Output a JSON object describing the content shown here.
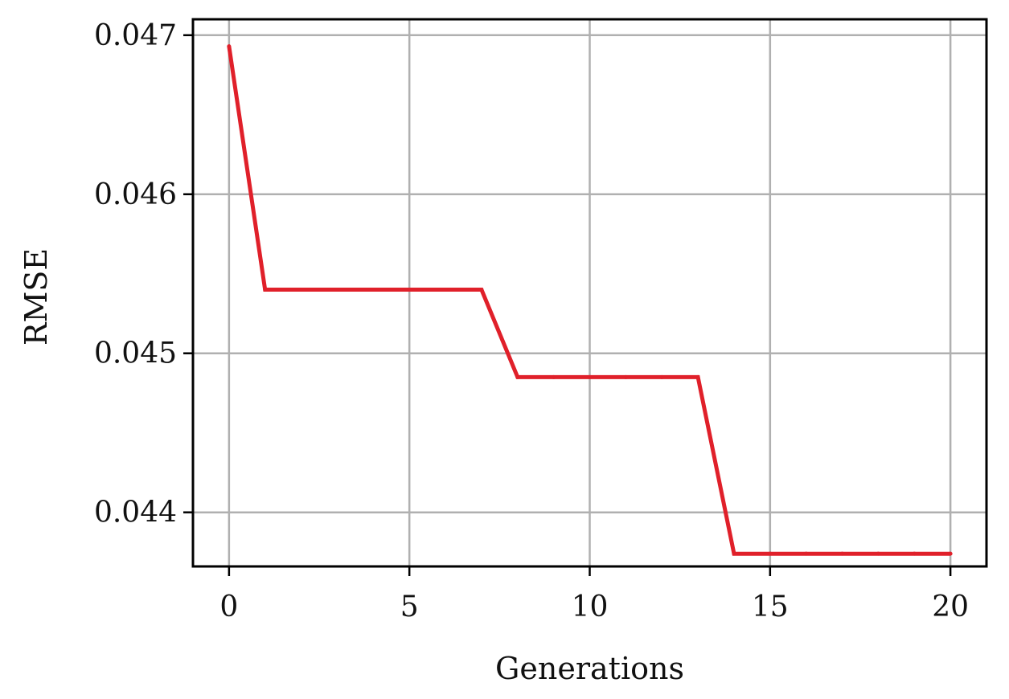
{
  "chart_data": {
    "type": "line",
    "title": "",
    "xlabel": "Generations",
    "ylabel": "RMSE",
    "xlim": [
      -1,
      21
    ],
    "ylim": [
      0.04366,
      0.0471
    ],
    "x_ticks": [
      0,
      5,
      10,
      15,
      20
    ],
    "x_tick_labels": [
      "0",
      "5",
      "10",
      "15",
      "20"
    ],
    "y_ticks": [
      0.044,
      0.045,
      0.046,
      0.047
    ],
    "y_tick_labels": [
      "0.044",
      "0.045",
      "0.046",
      "0.047"
    ],
    "grid": true,
    "legend": false,
    "series": [
      {
        "color": "#e0202a",
        "x": [
          0,
          1,
          2,
          3,
          4,
          5,
          6,
          7,
          8,
          9,
          10,
          11,
          12,
          13,
          14,
          15,
          16,
          17,
          18,
          19,
          20
        ],
        "values": [
          0.04693,
          0.0454,
          0.0454,
          0.0454,
          0.0454,
          0.0454,
          0.0454,
          0.0454,
          0.04485,
          0.04485,
          0.04485,
          0.04485,
          0.04485,
          0.04485,
          0.04374,
          0.04374,
          0.04374,
          0.04374,
          0.04374,
          0.04374,
          0.04374
        ]
      }
    ]
  }
}
